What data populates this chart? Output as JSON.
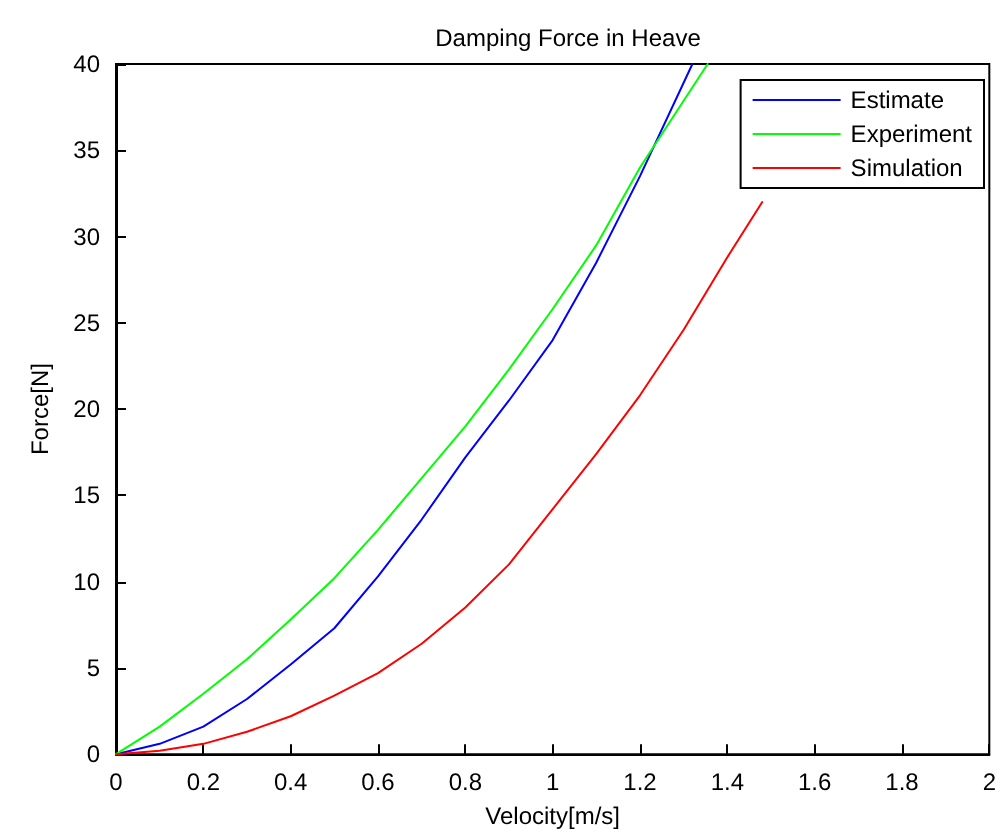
{
  "chart_data": {
    "type": "line",
    "title": "Damping Force in Heave",
    "xlabel": "Velocity[m/s]",
    "ylabel": "Force[N]",
    "xlim": [
      0,
      2
    ],
    "xticks": [
      0,
      0.2,
      0.4,
      0.6,
      0.8,
      1,
      1.2,
      1.4,
      1.6,
      1.8,
      2
    ],
    "ylim": [
      0,
      40
    ],
    "yticks": [
      0,
      5,
      10,
      15,
      20,
      25,
      30,
      35,
      40
    ],
    "grid": false,
    "legend": "top right",
    "marker": "none",
    "line_style": "solid",
    "series": [
      {
        "name": "Estimate",
        "color": "#0000ff",
        "x": [
          0,
          0.1,
          0.2,
          0.3,
          0.4,
          0.5,
          0.6,
          0.7,
          0.8,
          0.9,
          1.0,
          1.1,
          1.2,
          1.32
        ],
        "values": [
          0,
          0.6,
          1.6,
          3.2,
          5.2,
          7.3,
          10.3,
          13.6,
          17.2,
          20.5,
          24,
          28.5,
          33.5,
          40
        ]
      },
      {
        "name": "Experiment",
        "color": "#00ff00",
        "x": [
          0,
          0.1,
          0.2,
          0.3,
          0.4,
          0.5,
          0.6,
          0.7,
          0.8,
          0.9,
          1.0,
          1.1,
          1.2,
          1.355
        ],
        "values": [
          0,
          1.6,
          3.5,
          5.5,
          7.8,
          10.2,
          13,
          16,
          19,
          22.3,
          25.8,
          29.5,
          34,
          40
        ]
      },
      {
        "name": "Simulation",
        "color": "#ff0000",
        "x": [
          0,
          0.1,
          0.2,
          0.3,
          0.4,
          0.5,
          0.6,
          0.7,
          0.8,
          0.9,
          1.0,
          1.1,
          1.2,
          1.3,
          1.4,
          1.48
        ],
        "values": [
          0,
          0.2,
          0.6,
          1.3,
          2.2,
          3.4,
          4.7,
          6.4,
          8.5,
          11,
          14.2,
          17.4,
          20.8,
          24.6,
          28.8,
          32
        ]
      }
    ]
  }
}
